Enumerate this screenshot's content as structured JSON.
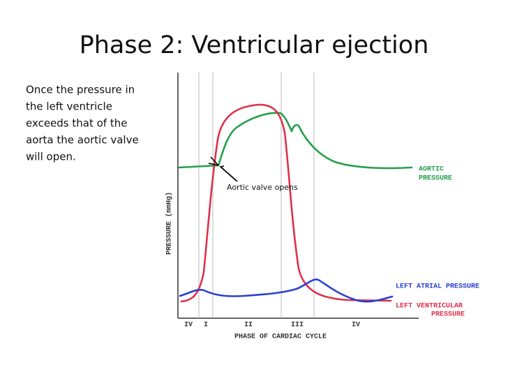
{
  "title": "Phase 2: Ventricular ejection",
  "description": [
    "Once the pressure in",
    "the left ventricle",
    "exceeds that of the",
    "aorta the aortic valve",
    "will open."
  ],
  "annotation": "Aortic valve opens",
  "y_axis_label": "PRESSURE (mmHg)",
  "x_axis_label": "PHASE OF CARDIAC CYCLE",
  "phases": [
    "IV",
    "I",
    "II",
    "III",
    "IV"
  ],
  "curves": {
    "aortic": [
      "AORTIC",
      "PRESSURE"
    ],
    "atrial": [
      "LEFT ATRIAL PRESSURE"
    ],
    "ventricular": [
      "LEFT VENTRICULAR",
      "PRESSURE"
    ]
  }
}
